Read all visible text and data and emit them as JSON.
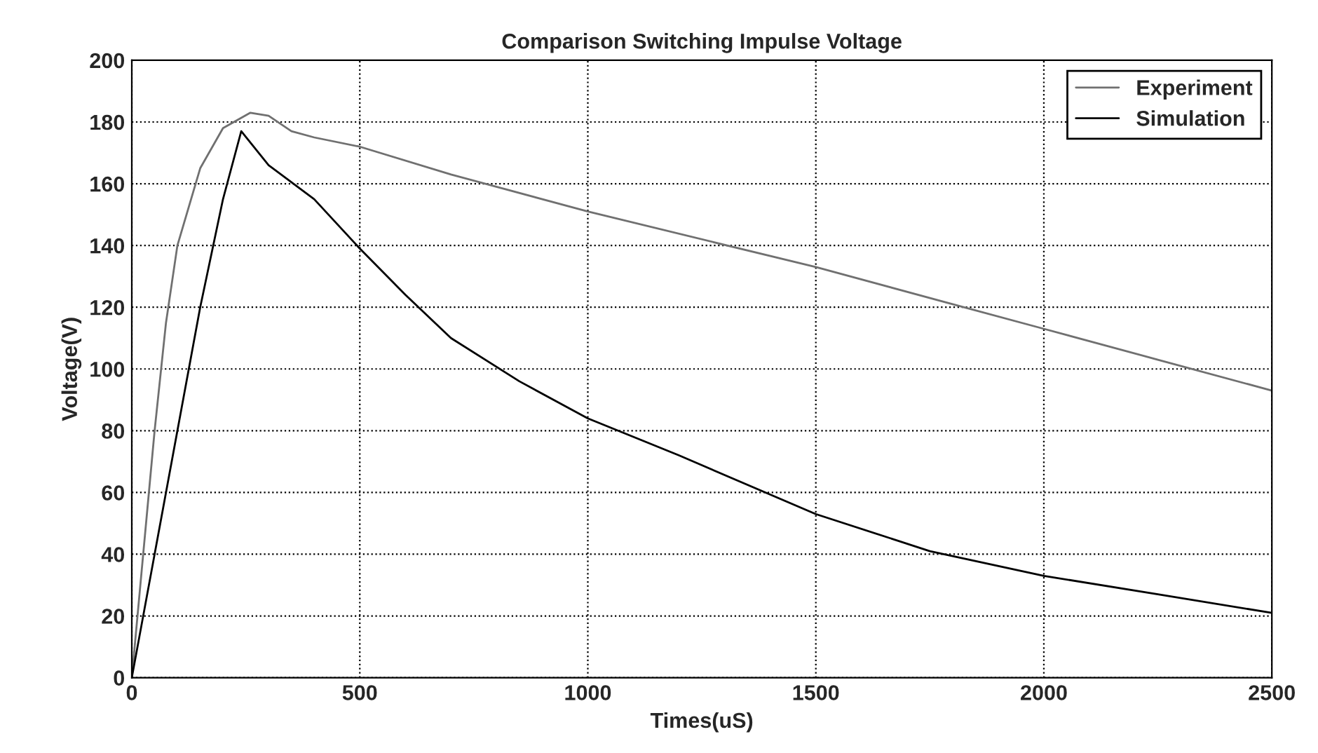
{
  "chart_data": {
    "type": "line",
    "title": "Comparison Switching Impulse Voltage",
    "xlabel": "Times(uS)",
    "ylabel": "Voltage(V)",
    "xlim": [
      0,
      2500
    ],
    "xticks": [
      0,
      500,
      1000,
      1500,
      2000,
      2500
    ],
    "ylim": [
      0,
      200
    ],
    "yticks": [
      0,
      20,
      40,
      60,
      80,
      100,
      120,
      140,
      160,
      180,
      200
    ],
    "grid": true,
    "legend": "top right",
    "series": [
      {
        "name": "Experiment",
        "color": "#707070",
        "x": [
          0,
          25,
          50,
          75,
          100,
          150,
          200,
          260,
          300,
          350,
          400,
          500,
          700,
          1000,
          1500,
          1800,
          2000,
          2250,
          2500
        ],
        "values": [
          0,
          40,
          80,
          115,
          140,
          165,
          178,
          183,
          182,
          177,
          175,
          172,
          163,
          151,
          133,
          121,
          113,
          103,
          93
        ]
      },
      {
        "name": "Simulation",
        "color": "#000000",
        "x": [
          0,
          50,
          100,
          150,
          200,
          240,
          300,
          400,
          500,
          600,
          700,
          850,
          1000,
          1200,
          1500,
          1750,
          2000,
          2250,
          2500
        ],
        "values": [
          0,
          40,
          80,
          120,
          155,
          177,
          166,
          155,
          139,
          124,
          110,
          96,
          84,
          72,
          53,
          41,
          33,
          27,
          21
        ]
      }
    ]
  }
}
